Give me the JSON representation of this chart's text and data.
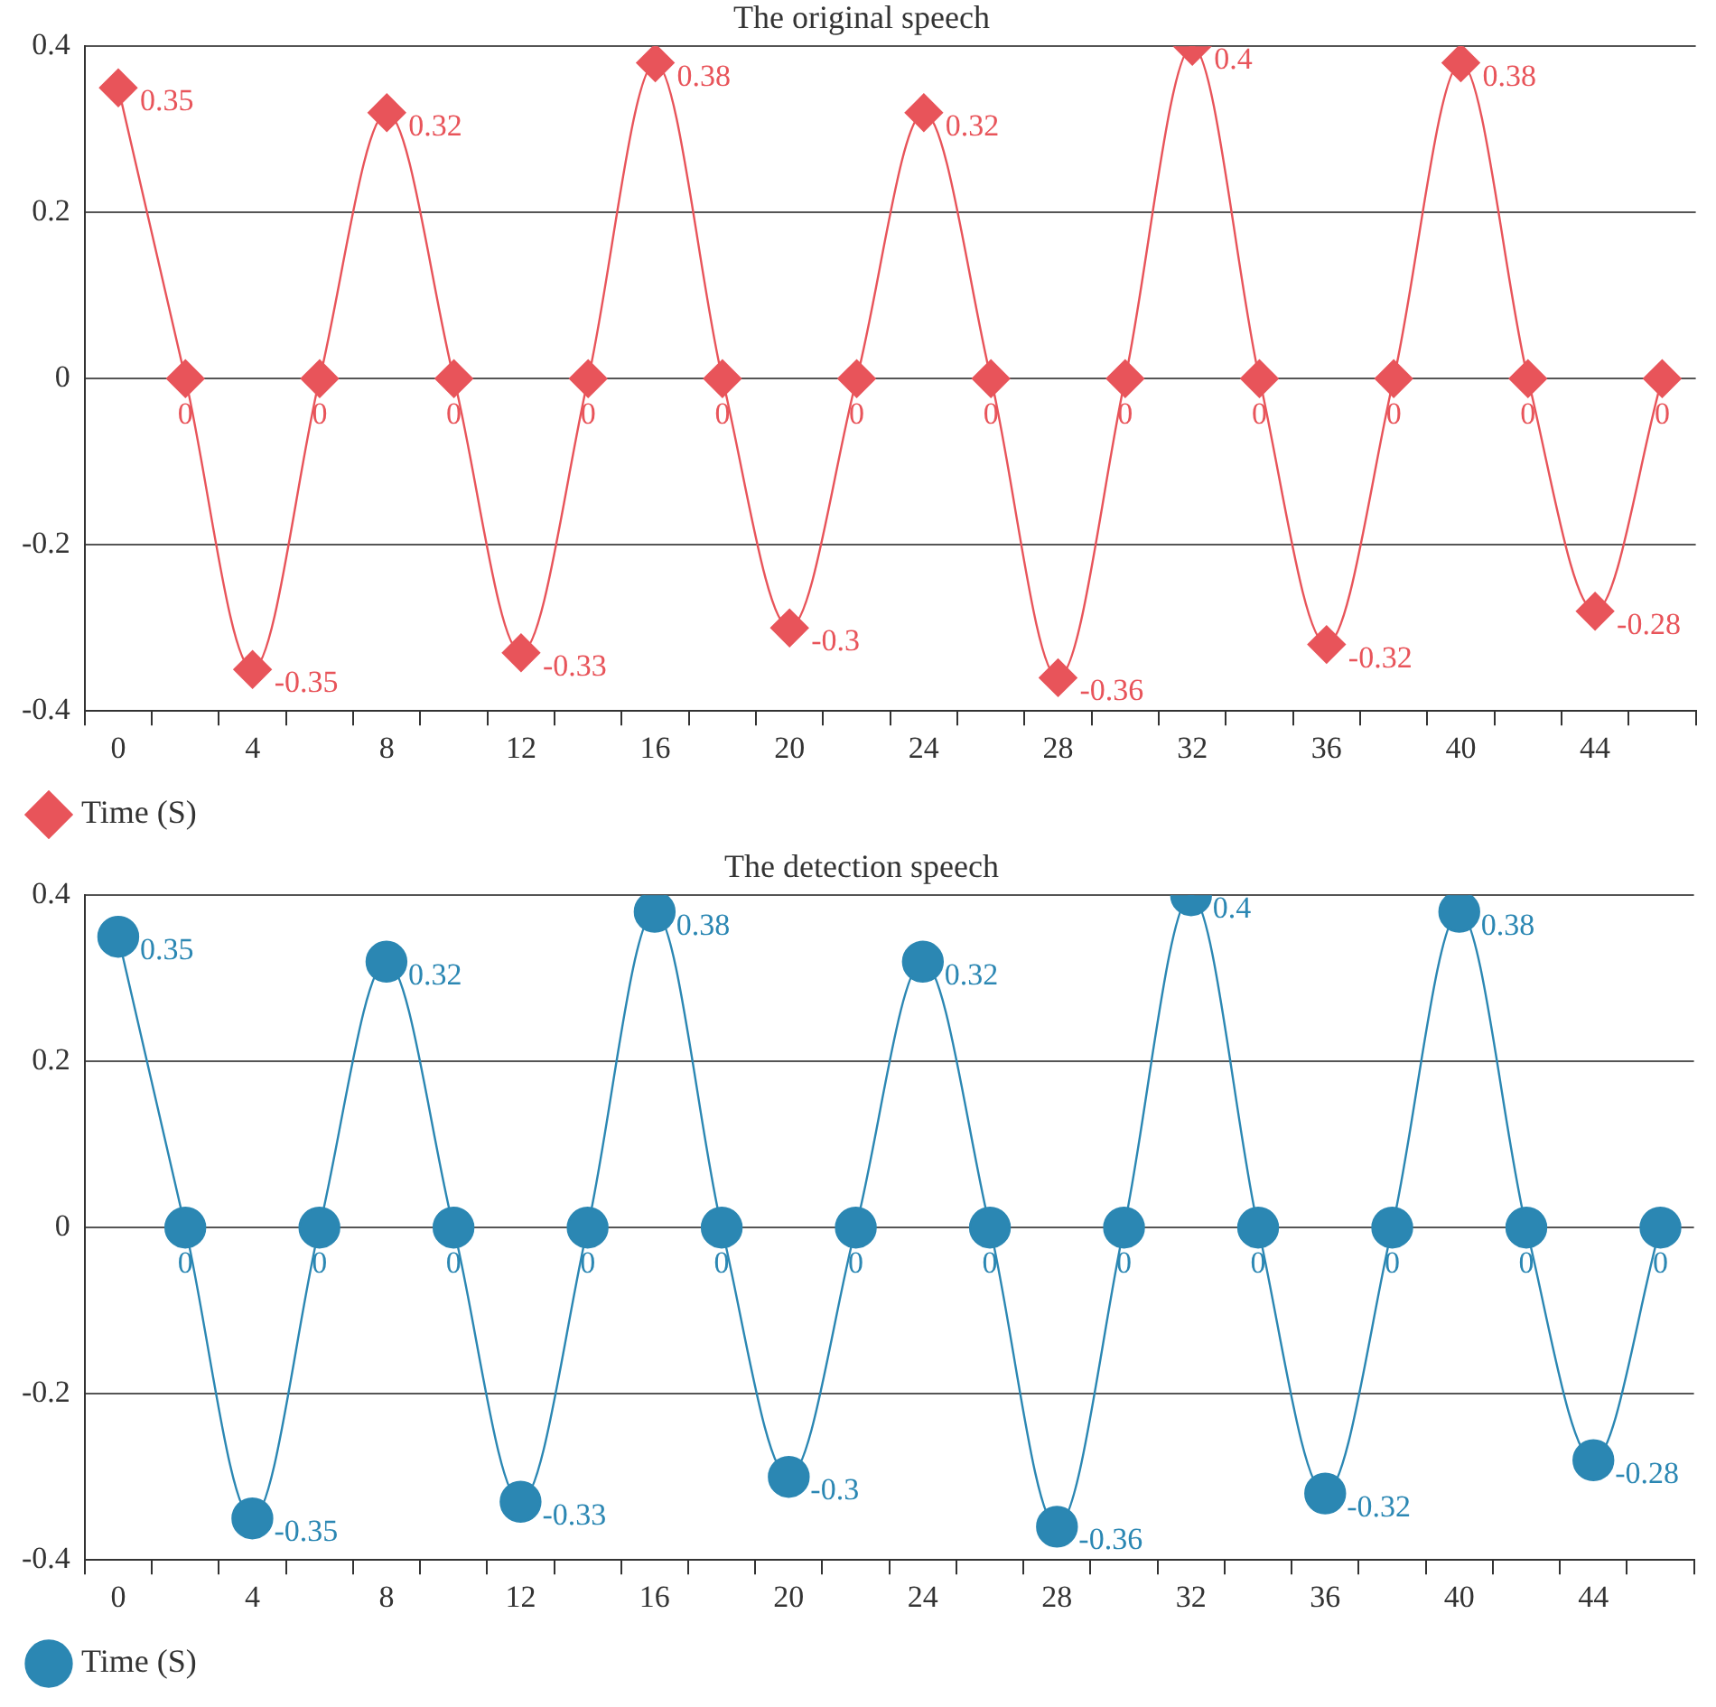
{
  "chart_data": [
    {
      "type": "line",
      "title": "The original speech",
      "categories": [
        "0",
        null,
        "4",
        null,
        "8",
        null,
        "12",
        null,
        "16",
        null,
        "20",
        null,
        "24",
        null,
        "28",
        null,
        "32",
        null,
        "36",
        null,
        "40",
        null,
        "44",
        null
      ],
      "series": [
        {
          "name": "Time (S)",
          "color": "#e8545a",
          "values": [
            0.35,
            0,
            -0.35,
            0,
            0.32,
            0,
            -0.33,
            0,
            0.38,
            0,
            -0.3,
            0,
            0.32,
            0,
            -0.36,
            0,
            0.4,
            0,
            -0.32,
            0,
            0.38,
            0,
            -0.28,
            0
          ]
        }
      ],
      "ylim": [
        -0.4,
        0.4
      ],
      "yticks": [
        -0.4,
        -0.2,
        0,
        0.2,
        0.4
      ],
      "grid": "y",
      "legend": "bottom left",
      "marker": "diamond",
      "line_style": "solid",
      "data_labels": true
    },
    {
      "type": "line",
      "title": "The detection speech",
      "categories": [
        "0",
        null,
        "4",
        null,
        "8",
        null,
        "12",
        null,
        "16",
        null,
        "20",
        null,
        "24",
        null,
        "28",
        null,
        "32",
        null,
        "36",
        null,
        "40",
        null,
        "44",
        null
      ],
      "series": [
        {
          "name": "Time (S)",
          "color": "#2b87b3",
          "values": [
            0.35,
            0,
            -0.35,
            0,
            0.32,
            0,
            -0.33,
            0,
            0.38,
            0,
            -0.3,
            0,
            0.32,
            0,
            -0.36,
            0,
            0.4,
            0,
            -0.32,
            0,
            0.38,
            0,
            -0.28,
            0
          ]
        }
      ],
      "ylim": [
        -0.4,
        0.4
      ],
      "yticks": [
        -0.4,
        -0.2,
        0,
        0.2,
        0.4
      ],
      "grid": "y",
      "legend": "bottom left",
      "marker": "circle",
      "line_style": "solid",
      "data_labels": true
    }
  ]
}
